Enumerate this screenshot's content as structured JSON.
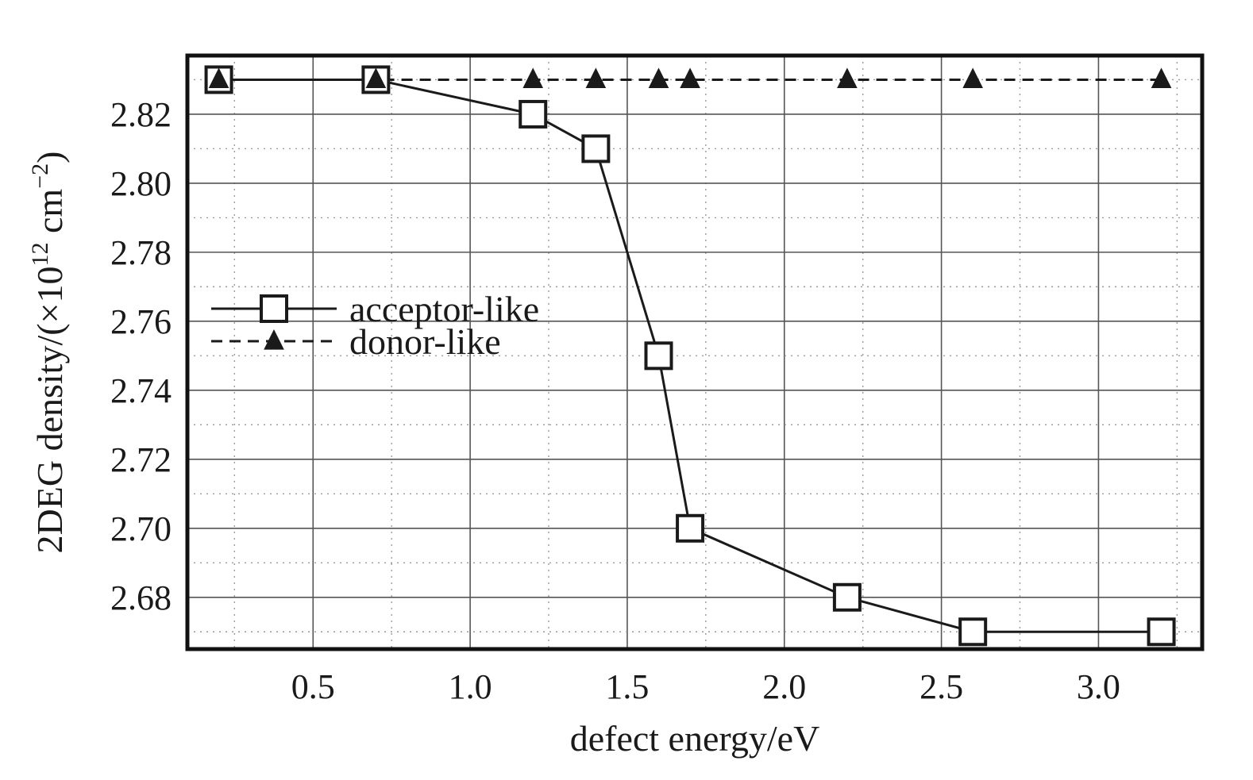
{
  "chart_data": {
    "type": "line",
    "title": "",
    "xlabel": "defect energy/eV",
    "ylabel": {
      "prefix": "2DEG density/(×10",
      "exp1": "12",
      "mid": " cm",
      "exp2": "−2",
      "suffix": ")"
    },
    "xlim": [
      0.1,
      3.33
    ],
    "ylim": [
      2.665,
      2.837
    ],
    "xticks": [
      {
        "value": 0.5,
        "label": "0.5"
      },
      {
        "value": 1.0,
        "label": "1.0"
      },
      {
        "value": 1.5,
        "label": "1.5"
      },
      {
        "value": 2.0,
        "label": "2.0"
      },
      {
        "value": 2.5,
        "label": "2.5"
      },
      {
        "value": 3.0,
        "label": "3.0"
      }
    ],
    "yticks": [
      {
        "value": 2.68,
        "label": "2.68"
      },
      {
        "value": 2.7,
        "label": "2.70"
      },
      {
        "value": 2.72,
        "label": "2.72"
      },
      {
        "value": 2.74,
        "label": "2.74"
      },
      {
        "value": 2.76,
        "label": "2.76"
      },
      {
        "value": 2.78,
        "label": "2.78"
      },
      {
        "value": 2.8,
        "label": "2.80"
      },
      {
        "value": 2.82,
        "label": "2.82"
      }
    ],
    "grid": true,
    "legend_position": "center-left",
    "series": [
      {
        "name": "acceptor-like",
        "marker": "open-square",
        "line": "solid",
        "x": [
          0.2,
          0.7,
          1.2,
          1.4,
          1.6,
          1.7,
          2.2,
          2.6,
          3.2
        ],
        "y": [
          2.83,
          2.83,
          2.82,
          2.81,
          2.75,
          2.7,
          2.68,
          2.67,
          2.67
        ]
      },
      {
        "name": "donor-like",
        "marker": "filled-triangle",
        "line": "dashed",
        "x": [
          0.2,
          0.7,
          1.2,
          1.4,
          1.6,
          1.7,
          2.2,
          2.6,
          3.2
        ],
        "y": [
          2.83,
          2.83,
          2.83,
          2.83,
          2.83,
          2.83,
          2.83,
          2.83,
          2.83
        ]
      }
    ],
    "colors": {
      "line": "#1a1a1a",
      "marker_fill_open": "#ffffff",
      "marker_fill_solid": "#1a1a1a"
    }
  }
}
